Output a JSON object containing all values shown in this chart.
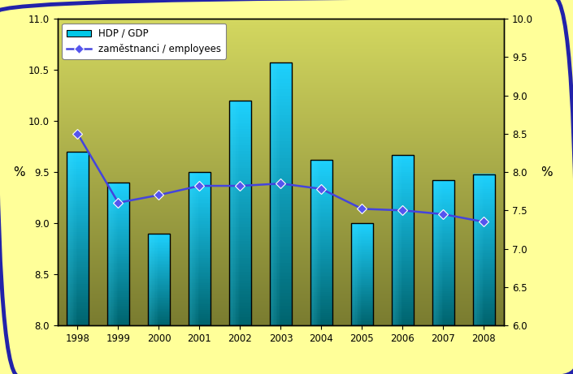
{
  "years": [
    1998,
    1999,
    2000,
    2001,
    2002,
    2003,
    2004,
    2005,
    2006,
    2007,
    2008
  ],
  "gdp_values": [
    9.7,
    9.4,
    8.9,
    9.5,
    10.2,
    10.57,
    9.62,
    9.0,
    9.67,
    9.42,
    9.48
  ],
  "emp_values": [
    8.5,
    7.6,
    7.7,
    7.82,
    7.82,
    7.85,
    7.78,
    7.52,
    7.5,
    7.45,
    7.35
  ],
  "left_ylim": [
    8.0,
    11.0
  ],
  "right_ylim": [
    6.0,
    10.0
  ],
  "left_yticks": [
    8.0,
    8.5,
    9.0,
    9.5,
    10.0,
    10.5,
    11.0
  ],
  "right_yticks": [
    6.0,
    6.5,
    7.0,
    7.5,
    8.0,
    8.5,
    9.0,
    9.5,
    10.0
  ],
  "ylabel_left": "%",
  "ylabel_right": "%",
  "legend_gdp": "HDP / GDP",
  "legend_emp": "zaměstnanci / employees",
  "bar_color_top": "#00CCFF",
  "bar_color_bottom": "#007070",
  "line_color": "#4444DD",
  "marker_color": "#5555EE",
  "background_outer": "#FFFF99",
  "figure_width": 7.05,
  "figure_height": 4.61,
  "border_color": "#2222AA"
}
